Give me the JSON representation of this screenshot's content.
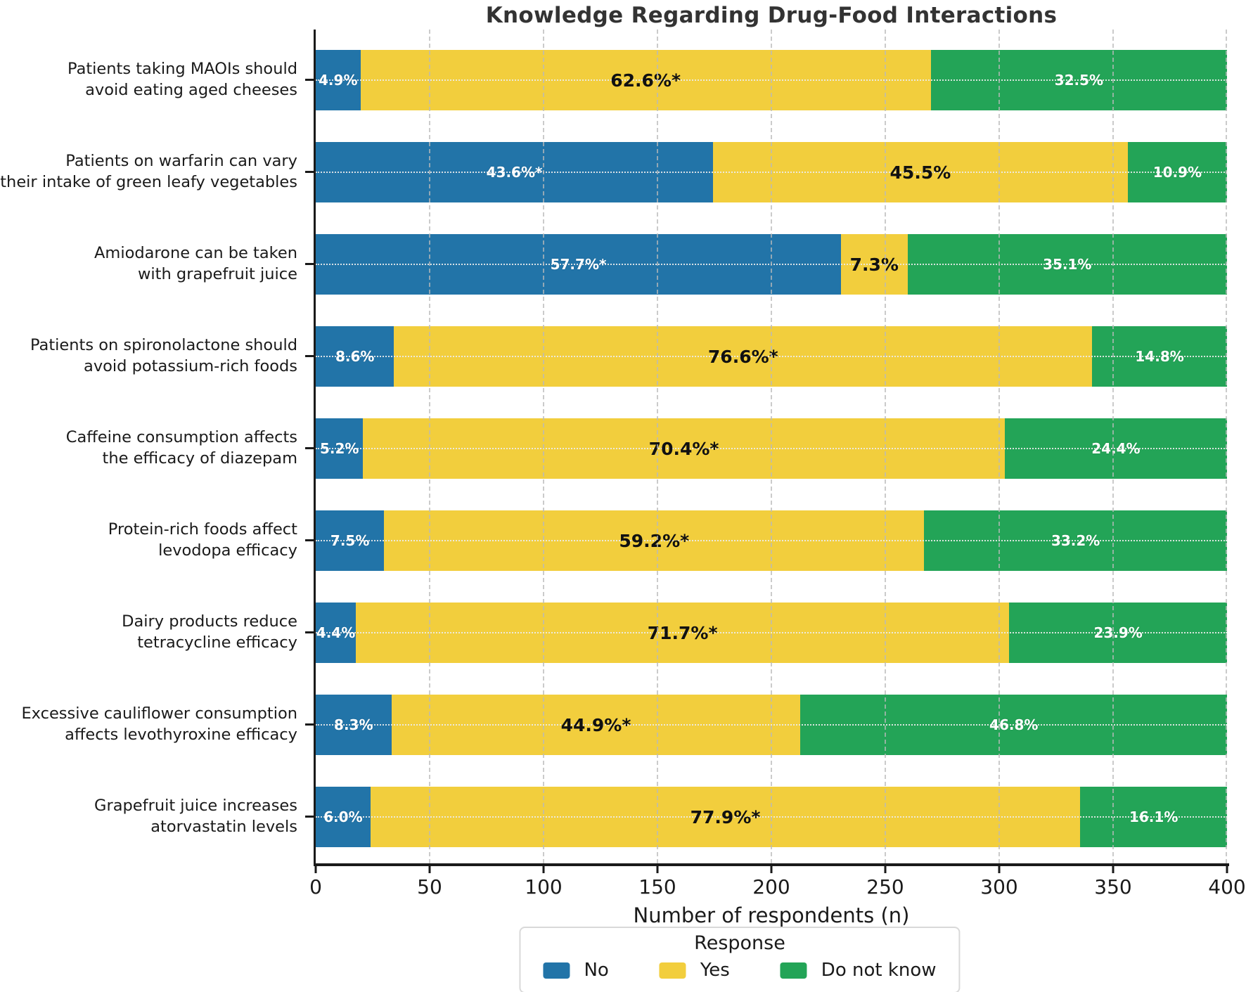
{
  "chart_data": {
    "type": "bar",
    "orientation": "horizontal_stacked",
    "title": "Knowledge Regarding Drug-Food Interactions",
    "xlabel": "Number of respondents (n)",
    "xlim": [
      0,
      400
    ],
    "xticks": [
      0,
      50,
      100,
      150,
      200,
      250,
      300,
      350,
      400
    ],
    "grid": {
      "vertical_dashed_at_xticks": true,
      "horizontal_dotted_at_rows": true
    },
    "legend": {
      "title": "Response",
      "position": "bottom-center",
      "entries": [
        {
          "label": "No",
          "color": "#2274A8"
        },
        {
          "label": "Yes",
          "color": "#F2CE3D"
        },
        {
          "label": "Do not know",
          "color": "#23A457"
        }
      ]
    },
    "colors": {
      "No": "#2274A8",
      "Yes": "#F2CE3D",
      "Do not know": "#23A457"
    },
    "rows": [
      {
        "label": "Patients taking MAOIs should\navoid eating aged cheeses",
        "segments": [
          {
            "series": "No",
            "value_pct": 4.9,
            "label": "4.9%"
          },
          {
            "series": "Yes",
            "value_pct": 62.6,
            "label": "62.6%*"
          },
          {
            "series": "Do not know",
            "value_pct": 32.5,
            "label": "32.5%"
          }
        ]
      },
      {
        "label": "Patients on warfarin can vary\ntheir intake of green leafy vegetables",
        "segments": [
          {
            "series": "No",
            "value_pct": 43.6,
            "label": "43.6%*"
          },
          {
            "series": "Yes",
            "value_pct": 45.5,
            "label": "45.5%"
          },
          {
            "series": "Do not know",
            "value_pct": 10.9,
            "label": "10.9%"
          }
        ]
      },
      {
        "label": "Amiodarone can be taken\nwith grapefruit juice",
        "segments": [
          {
            "series": "No",
            "value_pct": 57.7,
            "label": "57.7%*"
          },
          {
            "series": "Yes",
            "value_pct": 7.3,
            "label": "7.3%"
          },
          {
            "series": "Do not know",
            "value_pct": 35.1,
            "label": "35.1%"
          }
        ]
      },
      {
        "label": "Patients on spironolactone should\navoid potassium-rich foods",
        "segments": [
          {
            "series": "No",
            "value_pct": 8.6,
            "label": "8.6%"
          },
          {
            "series": "Yes",
            "value_pct": 76.6,
            "label": "76.6%*"
          },
          {
            "series": "Do not know",
            "value_pct": 14.8,
            "label": "14.8%"
          }
        ]
      },
      {
        "label": "Caffeine consumption affects\nthe efficacy of diazepam",
        "segments": [
          {
            "series": "No",
            "value_pct": 5.2,
            "label": "5.2%"
          },
          {
            "series": "Yes",
            "value_pct": 70.4,
            "label": "70.4%*"
          },
          {
            "series": "Do not know",
            "value_pct": 24.4,
            "label": "24.4%"
          }
        ]
      },
      {
        "label": "Protein-rich foods affect\nlevodopa efficacy",
        "segments": [
          {
            "series": "No",
            "value_pct": 7.5,
            "label": "7.5%"
          },
          {
            "series": "Yes",
            "value_pct": 59.2,
            "label": "59.2%*"
          },
          {
            "series": "Do not know",
            "value_pct": 33.2,
            "label": "33.2%"
          }
        ]
      },
      {
        "label": "Dairy products reduce\ntetracycline efficacy",
        "segments": [
          {
            "series": "No",
            "value_pct": 4.4,
            "label": "4.4%"
          },
          {
            "series": "Yes",
            "value_pct": 71.7,
            "label": "71.7%*"
          },
          {
            "series": "Do not know",
            "value_pct": 23.9,
            "label": "23.9%"
          }
        ]
      },
      {
        "label": "Excessive cauliflower consumption\naffects levothyroxine efficacy",
        "segments": [
          {
            "series": "No",
            "value_pct": 8.3,
            "label": "8.3%"
          },
          {
            "series": "Yes",
            "value_pct": 44.9,
            "label": "44.9%*"
          },
          {
            "series": "Do not know",
            "value_pct": 46.8,
            "label": "46.8%"
          }
        ]
      },
      {
        "label": "Grapefruit juice increases\natorvastatin levels",
        "segments": [
          {
            "series": "No",
            "value_pct": 6.0,
            "label": "6.0%"
          },
          {
            "series": "Yes",
            "value_pct": 77.9,
            "label": "77.9%*"
          },
          {
            "series": "Do not know",
            "value_pct": 16.1,
            "label": "16.1%"
          }
        ]
      }
    ]
  }
}
